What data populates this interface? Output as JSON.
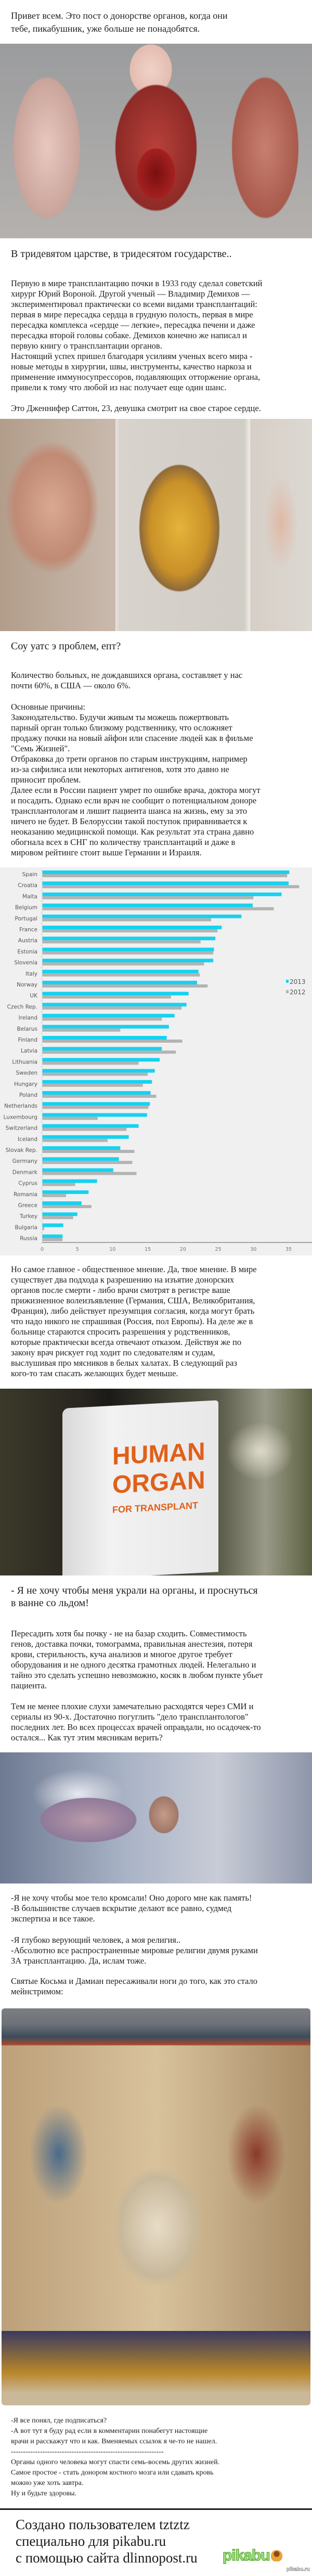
{
  "intro": [
    "Привет всем. Это пост о донорстве органов, когда они",
    "тебе, пикабушник, уже больше не понадобятся."
  ],
  "heading1": "В тридевятом царстве, в тридесятом государстве..",
  "para1": [
    "Первую в мире трансплантацию почки в 1933 году сделал советский",
    "хирург Юрий Вороной. Другой ученый — Владимир Демихов —",
    "экспериментировал практически со всеми видами трансплантаций:",
    "первая в мире пересадка сердца в грудную полость, первая в мире",
    "пересадка комплекса «сердце — легкие», пересадка печени и даже",
    "пересадка второй головы собаке. Демихов конечно же написал и",
    "первую книгу о трансплантации органов."
  ],
  "para2": [
    "Настоящий успех пришел благодаря усилиям ученых всего мира -",
    "новые методы в хирургии, швы, инструменты, качество наркоза и",
    "применение иммуносупрессоров, подавляющих отторжение органа,",
    "привели к тому что любой из нас получает еще один шанс."
  ],
  "caption_heart": "Это Дженнифер Саттон, 23, девушка смотрит на свое старое сердце.",
  "heading2": "Соу уатс э проблем, епт?",
  "para3": [
    "Количество больных, не дождавшихся органа, составляет у нас",
    "почти 60%, в США — около 6%."
  ],
  "para4": [
    "Основные причины:",
    "Законодательство. Будучи живым ты можешь пожертвовать",
    "парный орган только близкому родственнику, что осложняет",
    "продажу почки на новый айфон или спасение людей как в фильме",
    "\"Семь Жизней\".",
    "Отбраковка до трети органов по старым инструкциям, например",
    "из-за сифилиса или некоторых антигенов, хотя это давно не",
    "приносит проблем.",
    "Далее если в России пациент умрет по ошибке врача, доктора могут",
    "и посадить. Однако если врач не сообщит о потенциальном доноре",
    "трансплантологам и лишит пациента шанса на жизнь, ему за это",
    "ничего не будет. В Белоруссии такой поступок приравнивается к",
    "неоказанию медицинской помощи. Как результат эта страна давно",
    "обогнала всех в СНГ по количеству трансплантаций и даже в",
    "мировом рейтинге стоит выше Германии и Израиля."
  ],
  "chart_data": {
    "type": "bar",
    "orientation": "horizontal",
    "categories": [
      "Spain",
      "Croatia",
      "Malta",
      "Belgium",
      "Portugal",
      "France",
      "Austria",
      "Estonia",
      "Slovenia",
      "Italy",
      "Norway",
      "UK",
      "Czech Rep.",
      "Ireland",
      "Belarus",
      "Finland",
      "Latvia",
      "Lithuania",
      "Sweden",
      "Hungary",
      "Poland",
      "Netherlands",
      "Luxembourg",
      "Switzerland",
      "Iceland",
      "Slovak Rep.",
      "Germany",
      "Denmark",
      "Cyprus",
      "Romania",
      "Greece",
      "Turkey",
      "Bulgaria",
      "Russia"
    ],
    "series": [
      {
        "name": "2013",
        "color": "#16d2f0",
        "values": [
          35.1,
          35.0,
          34.0,
          29.9,
          28.3,
          25.5,
          24.6,
          24.4,
          24.3,
          22.2,
          22.0,
          20.8,
          20.5,
          18.8,
          18.0,
          17.7,
          17.0,
          16.7,
          16.0,
          15.6,
          15.4,
          15.3,
          14.9,
          13.7,
          12.3,
          11.1,
          10.9,
          10.1,
          7.8,
          6.6,
          5.6,
          5.0,
          3.0,
          2.9
        ]
      },
      {
        "name": "2012",
        "color": "#b3b3b3",
        "values": [
          34.8,
          36.5,
          30.0,
          32.9,
          24.0,
          24.9,
          22.5,
          24.3,
          23.0,
          22.4,
          23.5,
          18.3,
          19.8,
          17.0,
          11.1,
          19.9,
          19.0,
          13.7,
          15.0,
          14.3,
          16.2,
          15.1,
          7.9,
          12.0,
          9.3,
          13.1,
          12.8,
          13.4,
          4.7,
          3.4,
          7.0,
          4.4,
          0.3,
          2.9
        ]
      }
    ],
    "xticks": [
      "0",
      "5",
      "10",
      "15",
      "20",
      "25",
      "30",
      "35"
    ],
    "xlim": [
      0,
      37
    ],
    "legend": "right",
    "grid": false
  },
  "para5": [
    "Но самое главное - общественное мнение. Да, твое мнение. В мире",
    "существует два подхода к разрешению на изъятие донорских",
    "органов после смерти - либо врачи смотрят в регистре ваше",
    "прижизненное волеизъявление (Германия, США, Великобритания,",
    "Франция), либо действует презумпция согласия, когда могут брать",
    "что надо никого не спрашивая (Россия, пол Европы). На деле же в",
    "больнице стараются спросить разрешения у родственников,",
    "которые практически всегда отвечают отказом. Действуя же по",
    "закону врач рискует год ходит по следователям и судам,",
    "выслушивая про мясников в белых халатах. В следующий раз",
    "кого-то там спасать желающих будет меньше."
  ],
  "bag_lettering": [
    "HUMAN",
    "ORGAN",
    "FOR TRANSPLANT"
  ],
  "heading3": [
    "- Я не хочу чтобы меня украли на органы, и проснуться",
    "в ванне со льдом!"
  ],
  "para6": [
    "Пересадить хотя бы почку - не на базар сходить. Совместимость",
    "генов, доставка почки, томограмма, правильная анестезия, потеря",
    "крови, стерильность, куча анализов и многое другое требует",
    "оборудования и не одного десятка грамотных людей. Нелегально и",
    "тайно это сделать успешно невозможно, косяк в любом пункте убьет",
    "пациента."
  ],
  "para7": [
    "Тем не менее плохие слухи замечательно расходятся через СМИ и",
    "сериалы из 90-х. Достаточно погуглить \"дело трансплантологов\"",
    "последних лет. Во всех процессах врачей оправдали, но осадочек-то",
    "остался... Как тут этим мясникам верить?"
  ],
  "para8": [
    "-Я не хочу чтобы мое тело кромсали! Оно дорого мне как память!",
    "-В большинстве случаев вскрытие делают все равно, судмед",
    "экспертиза и все такое."
  ],
  "para9": [
    "-Я глубоко верующий человек, а моя религия..",
    "-Абсолютно все распространенные мировые религии двумя руками",
    "ЗА трансплантацию. Да, ислам тоже."
  ],
  "para10": [
    "Святые Косьма и Дамиан пересаживали ноги до того, как это стало",
    "мейнстримом:"
  ],
  "final": [
    "-Я все понял, где подписаться?",
    "-А вот тут я буду рад если в комментарии понабегут настоящие",
    "врачи и расскажут что и как. Вменяемых ссылок я че-то не нашел.",
    "---------------------------------------------------------------",
    "Органы одного человека могут спасти семь-восемь других жизней.",
    "Самое простое - стать донором костного мозга или сдавать кровь",
    "можно уже хоть завтра.",
    "Ну и будьте здоровы."
  ],
  "footer": [
    "Создано пользователем tztztz",
    "специально для pikabu.ru",
    "с помощью сайта dlinnopost.ru"
  ],
  "logo_text": "pikabu",
  "watermark": "pikabu.ru"
}
